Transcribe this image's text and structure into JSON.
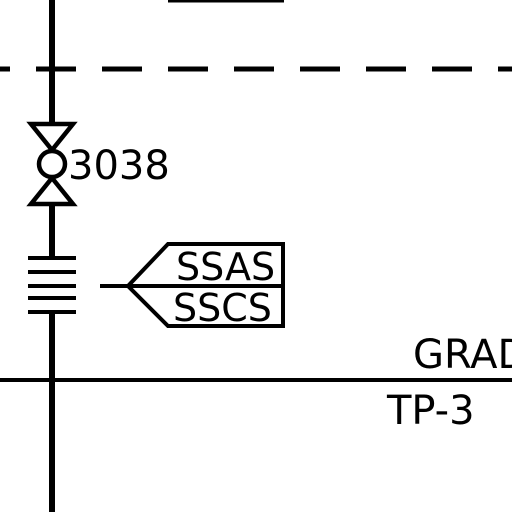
{
  "valve": {
    "tag": "3038"
  },
  "flag": {
    "upper_label": "SSAS",
    "lower_label": "SSCS"
  },
  "grade": {
    "label": "GRAD",
    "reference": "TP-3"
  }
}
